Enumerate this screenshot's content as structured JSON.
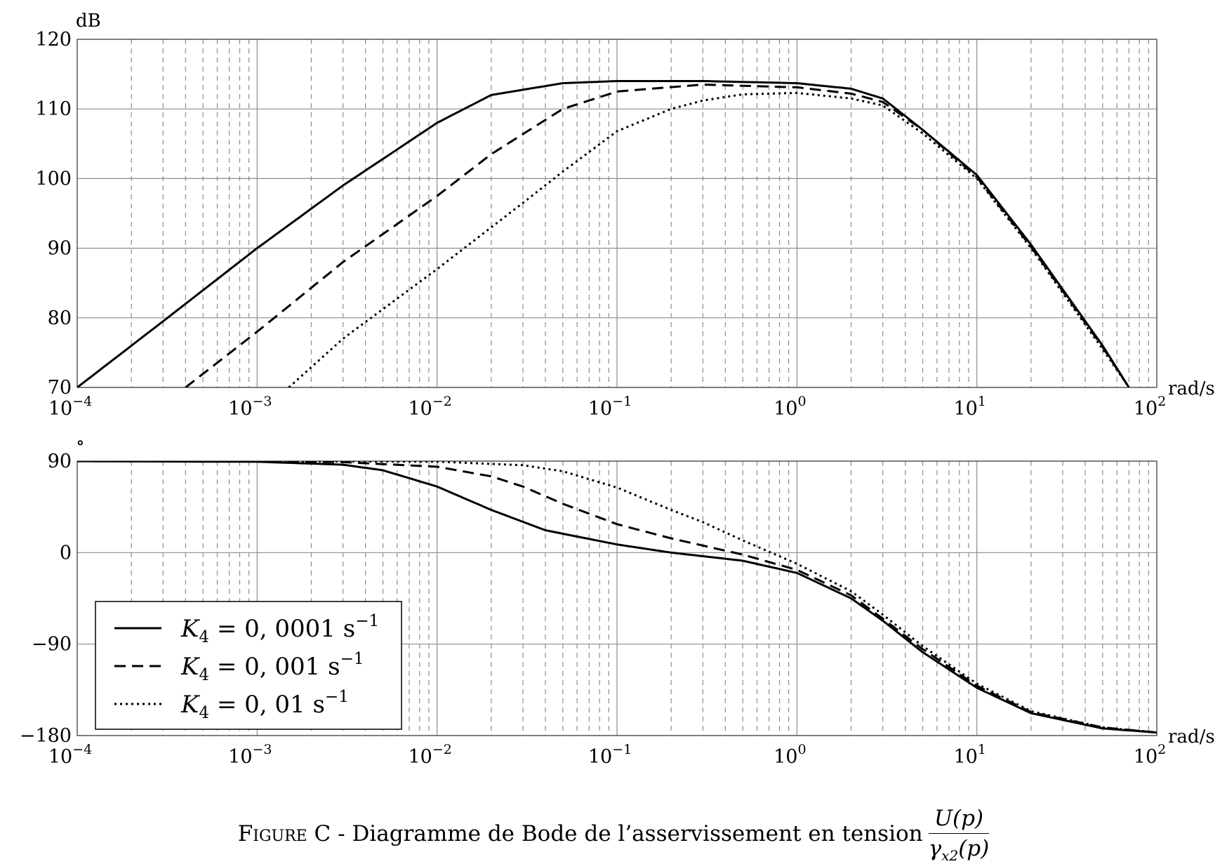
{
  "chart_data": [
    {
      "type": "line",
      "panel": "gain",
      "y_unit": "dB",
      "x_unit": "rad/s",
      "x_scale": "log",
      "xlim": [
        0.0001,
        100
      ],
      "ylim": [
        70,
        120
      ],
      "y_ticks": [
        "70",
        "80",
        "90",
        "100",
        "110",
        "120"
      ],
      "x_tick_exponents": [
        "−4",
        "−3",
        "−2",
        "−1",
        "0",
        "1",
        "2"
      ],
      "x_tick_base": "10",
      "grid": true,
      "series": [
        {
          "style": "solid",
          "x": [
            0.0001,
            0.0003,
            0.001,
            0.003,
            0.01,
            0.02,
            0.05,
            0.1,
            0.3,
            1,
            2,
            3,
            5,
            10,
            20,
            50,
            70
          ],
          "y": [
            70,
            79.5,
            90,
            99,
            108,
            112,
            113.7,
            114,
            114,
            113.7,
            112.9,
            111.5,
            107,
            100.5,
            90.5,
            76,
            70
          ]
        },
        {
          "style": "dashed",
          "x": [
            0.0004,
            0.001,
            0.003,
            0.01,
            0.02,
            0.05,
            0.1,
            0.3,
            1,
            2,
            3,
            5,
            10,
            20,
            50,
            70
          ],
          "y": [
            70,
            78,
            88,
            97.5,
            103.5,
            110,
            112.5,
            113.5,
            113.1,
            112.2,
            111,
            107,
            100.2,
            90.2,
            75.8,
            70
          ]
        },
        {
          "style": "dotted",
          "x": [
            0.0015,
            0.003,
            0.01,
            0.03,
            0.05,
            0.1,
            0.2,
            0.3,
            0.5,
            1,
            2,
            3,
            5,
            10,
            20,
            50,
            70
          ],
          "y": [
            70,
            77,
            87,
            96.5,
            101,
            106.8,
            110,
            111.2,
            112.1,
            112.3,
            111.5,
            110.5,
            106.5,
            100,
            90,
            75.5,
            70
          ]
        }
      ]
    },
    {
      "type": "line",
      "panel": "phase",
      "y_unit": "∘",
      "x_unit": "rad/s",
      "x_scale": "log",
      "xlim": [
        0.0001,
        100
      ],
      "ylim": [
        -180,
        90
      ],
      "y_ticks": [
        "−180",
        "−90",
        "0",
        "90"
      ],
      "x_tick_exponents": [
        "−4",
        "−3",
        "−2",
        "−1",
        "0",
        "1",
        "2"
      ],
      "x_tick_base": "10",
      "grid": true,
      "legend_position": "bottom-left",
      "series": [
        {
          "style": "solid",
          "label_var": "K",
          "label_sub": "4",
          "label_value": "= 0, 0001 s",
          "label_sup": "−1",
          "x": [
            0.0001,
            0.001,
            0.003,
            0.005,
            0.01,
            0.02,
            0.04,
            0.1,
            0.2,
            0.5,
            1,
            2,
            3,
            5,
            10,
            20,
            50,
            100
          ],
          "y": [
            89.9,
            89.4,
            86.5,
            81,
            65,
            42,
            22,
            8,
            0,
            -8,
            -20,
            -45,
            -67,
            -98,
            -133,
            -158,
            -173,
            -177
          ]
        },
        {
          "style": "dashed",
          "label_var": "K",
          "label_sub": "4",
          "label_value": "= 0, 001 s",
          "label_sup": "−1",
          "x": [
            0.0001,
            0.001,
            0.003,
            0.01,
            0.02,
            0.03,
            0.05,
            0.1,
            0.2,
            0.5,
            1,
            2,
            3,
            5,
            10,
            20,
            50,
            100
          ],
          "y": [
            90,
            90,
            89,
            84.5,
            75,
            65,
            48,
            28,
            14,
            -2,
            -17,
            -42,
            -65,
            -95,
            -131,
            -157,
            -172,
            -177
          ]
        },
        {
          "style": "dotted",
          "label_var": "K",
          "label_sub": "4",
          "label_value": "= 0, 01 s",
          "label_sup": "−1",
          "x": [
            0.0001,
            0.001,
            0.01,
            0.03,
            0.05,
            0.1,
            0.2,
            0.3,
            0.5,
            1,
            2,
            3,
            5,
            10,
            20,
            50,
            100
          ],
          "y": [
            90,
            90,
            89.5,
            86,
            80,
            64,
            42,
            30,
            12,
            -11,
            -38,
            -61,
            -92,
            -129,
            -156,
            -172,
            -177
          ]
        }
      ]
    }
  ],
  "caption": {
    "prefix": "Figure C",
    "text": " - Diagramme de Bode de l’asservissement en tension",
    "fraction_num": "U(p)",
    "fraction_den_var": "γ",
    "fraction_den_sub": "x2",
    "fraction_den_arg": "(p)"
  }
}
